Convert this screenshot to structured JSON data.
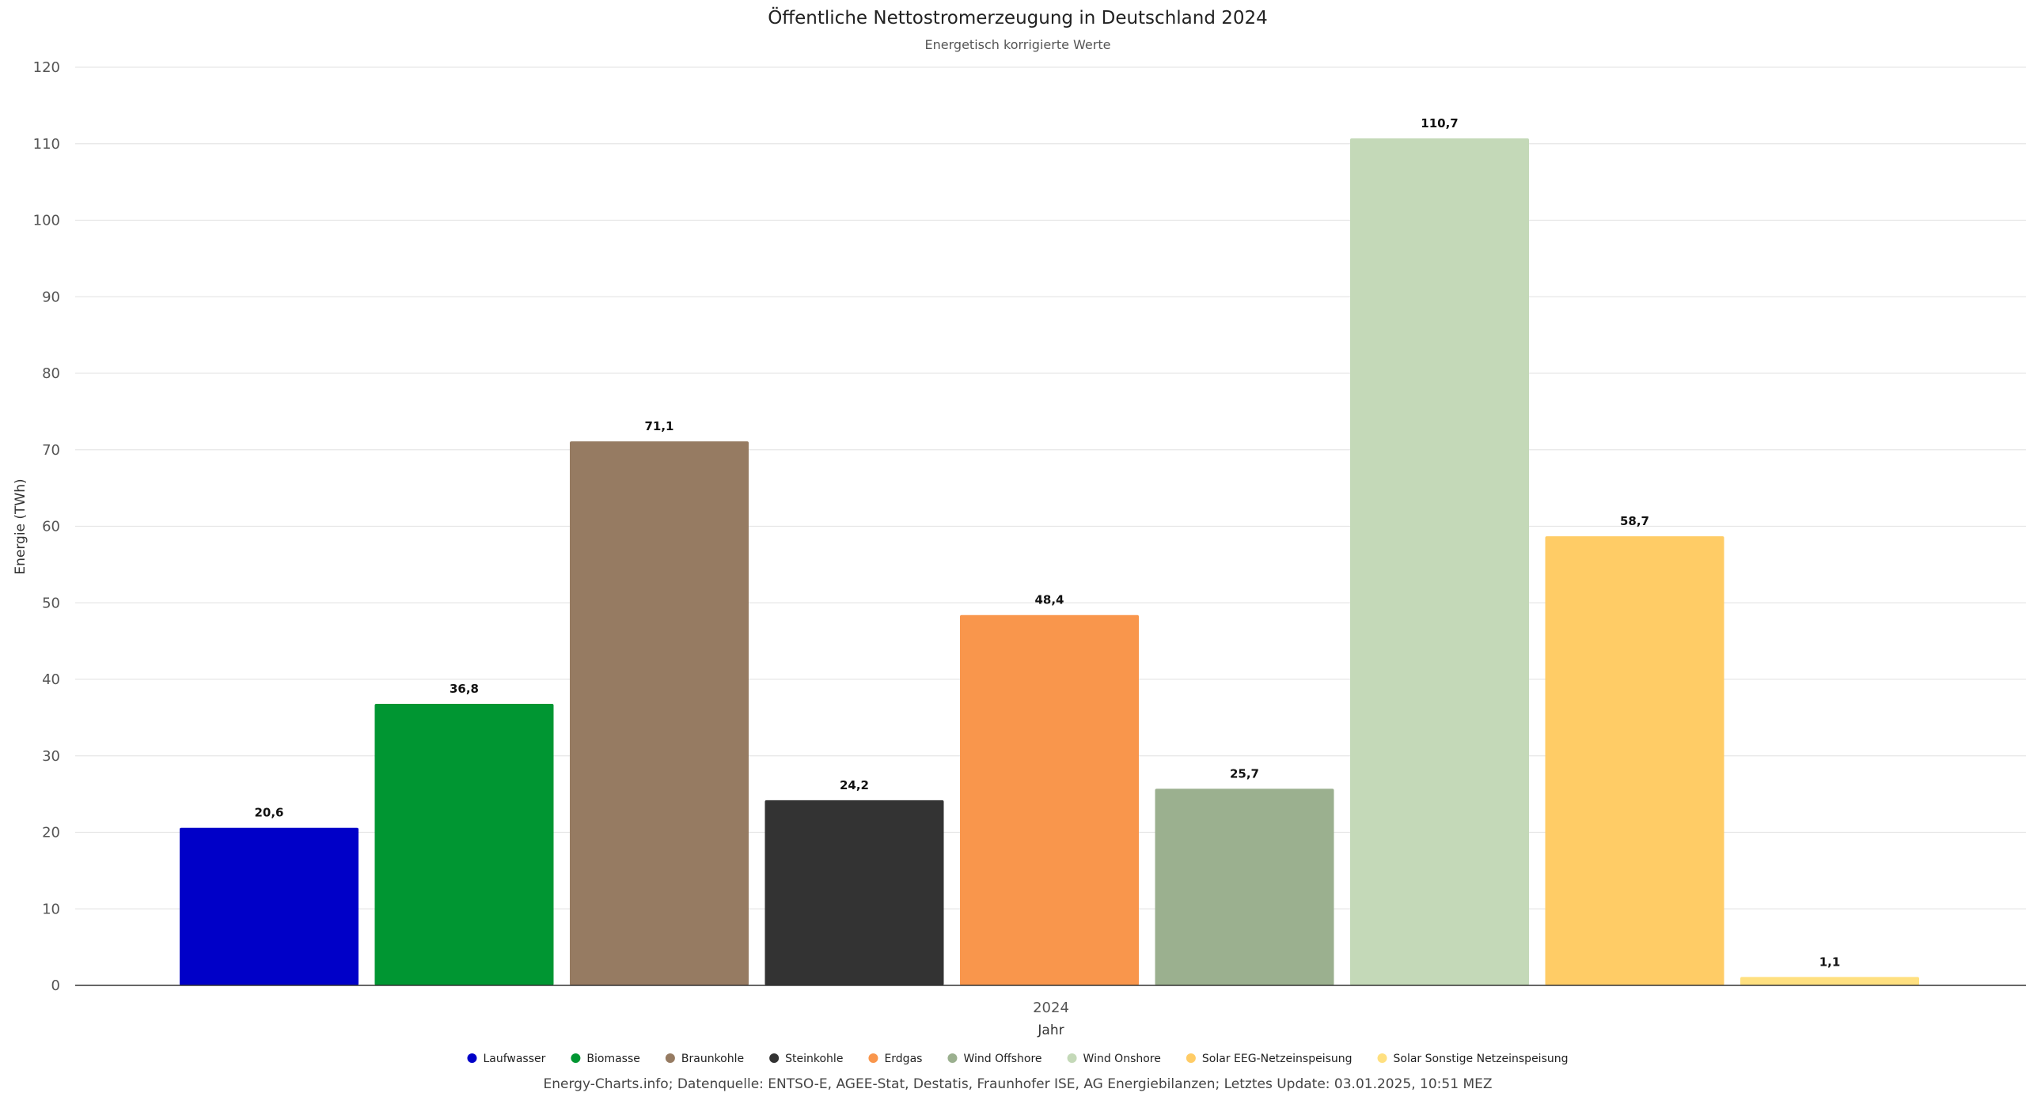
{
  "chart_data": {
    "type": "bar",
    "title": "Öffentliche Nettostromerzeugung in Deutschland 2024",
    "subtitle": "Energetisch korrigierte Werte",
    "xlabel": "Jahr",
    "ylabel": "Energie (TWh)",
    "categories": [
      "2024"
    ],
    "ylim": [
      0,
      120
    ],
    "yticks": [
      "0",
      "10",
      "20",
      "30",
      "40",
      "50",
      "60",
      "70",
      "80",
      "90",
      "100",
      "110",
      "120"
    ],
    "grid": true,
    "legend_position": "bottom",
    "series": [
      {
        "name": "Laufwasser",
        "values": [
          20.6
        ],
        "label": "20,6",
        "color": "#0000c8"
      },
      {
        "name": "Biomasse",
        "values": [
          36.8
        ],
        "label": "36,8",
        "color": "#009632"
      },
      {
        "name": "Braunkohle",
        "values": [
          71.1
        ],
        "label": "71,1",
        "color": "#967b62"
      },
      {
        "name": "Steinkohle",
        "values": [
          24.2
        ],
        "label": "24,2",
        "color": "#333333"
      },
      {
        "name": "Erdgas",
        "values": [
          48.4
        ],
        "label": "48,4",
        "color": "#f9964c"
      },
      {
        "name": "Wind Offshore",
        "values": [
          25.7
        ],
        "label": "25,7",
        "color": "#9bb08f"
      },
      {
        "name": "Wind Onshore",
        "values": [
          110.7
        ],
        "label": "110,7",
        "color": "#c4d9b8"
      },
      {
        "name": "Solar EEG-Netzeinspeisung",
        "values": [
          58.7
        ],
        "label": "58,7",
        "color": "#ffcc66"
      },
      {
        "name": "Solar Sonstige Netzeinspeisung",
        "values": [
          1.1
        ],
        "label": "1,1",
        "color": "#ffe080"
      }
    ]
  },
  "credits": "Energy-Charts.info; Datenquelle: ENTSO-E, AGEE-Stat, Destatis, Fraunhofer ISE, AG Energiebilanzen; Letztes Update: 03.01.2025, 10:51 MEZ"
}
